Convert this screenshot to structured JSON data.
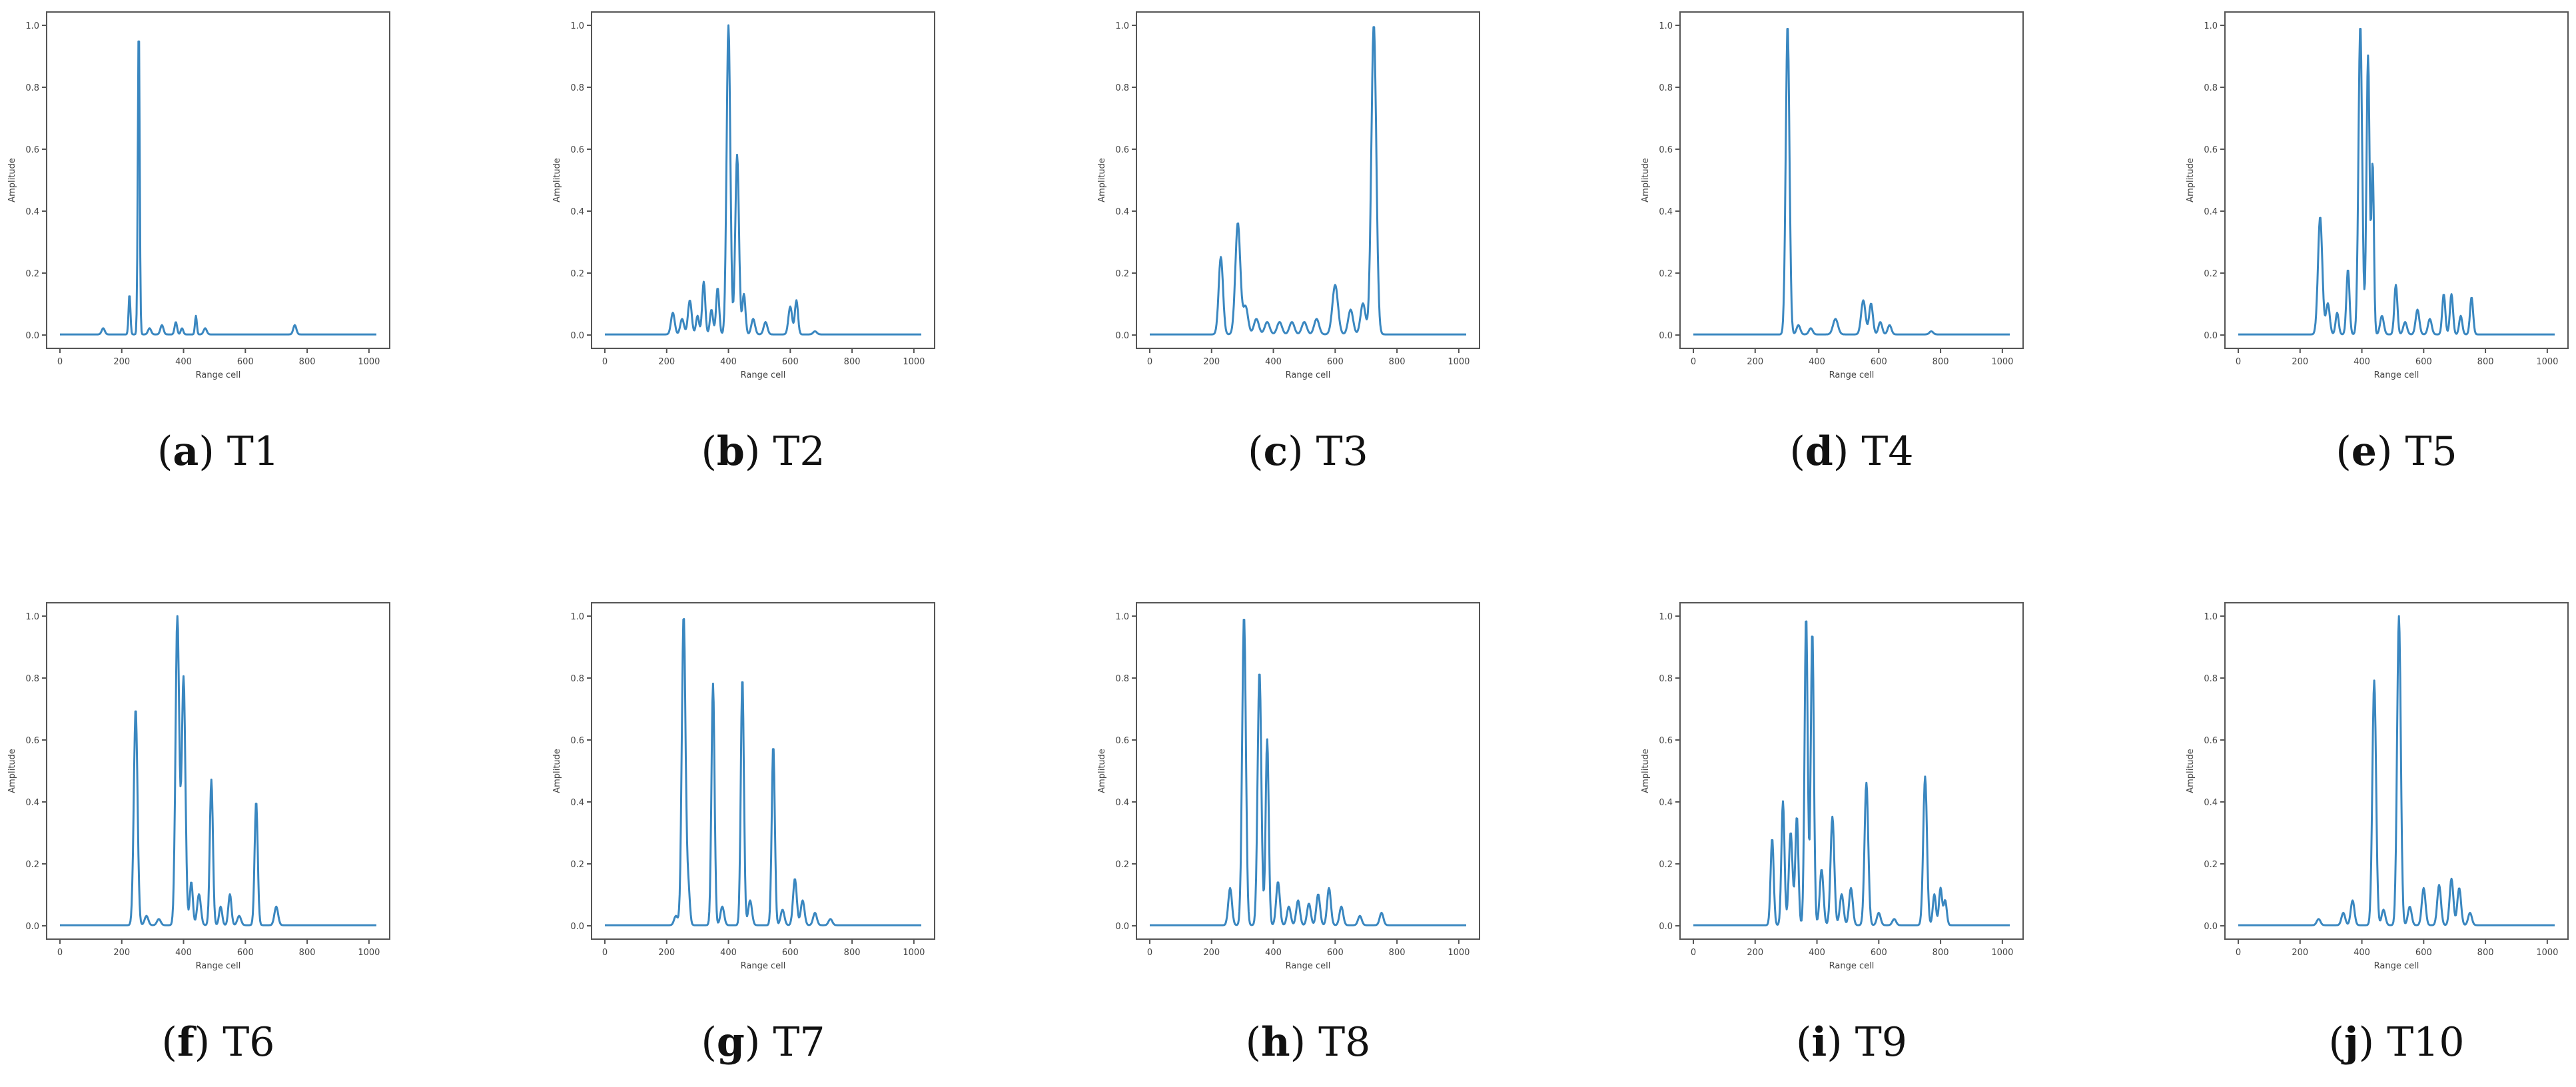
{
  "chart_data": [
    {
      "type": "line",
      "caption_letter": "a",
      "caption_label": "T1",
      "xlabel": "Range cell",
      "ylabel": "Amplitude",
      "xlim": [
        0,
        1024
      ],
      "ylim": [
        0,
        1.0
      ],
      "xticks": [
        0,
        200,
        400,
        600,
        800,
        1000
      ],
      "yticks": [
        0.0,
        0.2,
        0.4,
        0.6,
        0.8,
        1.0
      ],
      "peaks": [
        [
          140,
          0.02,
          5
        ],
        [
          225,
          0.13,
          3
        ],
        [
          255,
          1.0,
          3
        ],
        [
          290,
          0.02,
          5
        ],
        [
          330,
          0.03,
          5
        ],
        [
          375,
          0.04,
          4
        ],
        [
          395,
          0.02,
          4
        ],
        [
          440,
          0.06,
          3
        ],
        [
          470,
          0.02,
          5
        ],
        [
          760,
          0.03,
          5
        ]
      ]
    },
    {
      "type": "line",
      "caption_letter": "b",
      "caption_label": "T2",
      "xlabel": "Range cell",
      "ylabel": "Amplitude",
      "xlim": [
        0,
        1024
      ],
      "ylim": [
        0,
        1.0
      ],
      "xticks": [
        0,
        200,
        400,
        600,
        800,
        1000
      ],
      "yticks": [
        0.0,
        0.2,
        0.4,
        0.6,
        0.8,
        1.0
      ],
      "peaks": [
        [
          220,
          0.07,
          6
        ],
        [
          250,
          0.05,
          6
        ],
        [
          275,
          0.11,
          6
        ],
        [
          300,
          0.06,
          5
        ],
        [
          320,
          0.17,
          5
        ],
        [
          345,
          0.08,
          5
        ],
        [
          365,
          0.15,
          5
        ],
        [
          400,
          1.0,
          6
        ],
        [
          428,
          0.58,
          6
        ],
        [
          450,
          0.13,
          5
        ],
        [
          480,
          0.05,
          6
        ],
        [
          520,
          0.04,
          6
        ],
        [
          600,
          0.09,
          6
        ],
        [
          620,
          0.11,
          5
        ],
        [
          680,
          0.01,
          6
        ]
      ]
    },
    {
      "type": "line",
      "caption_letter": "c",
      "caption_label": "T3",
      "xlabel": "Range cell",
      "ylabel": "Amplitude",
      "xlim": [
        0,
        1024
      ],
      "ylim": [
        0,
        1.0
      ],
      "xticks": [
        0,
        200,
        400,
        600,
        800,
        1000
      ],
      "yticks": [
        0.0,
        0.2,
        0.4,
        0.6,
        0.8,
        1.0
      ],
      "peaks": [
        [
          230,
          0.25,
          7
        ],
        [
          285,
          0.36,
          8
        ],
        [
          310,
          0.09,
          8
        ],
        [
          345,
          0.05,
          8
        ],
        [
          380,
          0.04,
          8
        ],
        [
          420,
          0.04,
          8
        ],
        [
          460,
          0.04,
          8
        ],
        [
          500,
          0.04,
          8
        ],
        [
          540,
          0.05,
          8
        ],
        [
          600,
          0.16,
          9
        ],
        [
          650,
          0.08,
          8
        ],
        [
          690,
          0.1,
          8
        ],
        [
          725,
          1.0,
          8
        ]
      ]
    },
    {
      "type": "line",
      "caption_letter": "d",
      "caption_label": "T4",
      "xlabel": "Range cell",
      "ylabel": "Amplitude",
      "xlim": [
        0,
        1024
      ],
      "ylim": [
        0,
        1.0
      ],
      "xticks": [
        0,
        200,
        400,
        600,
        800,
        1000
      ],
      "yticks": [
        0.0,
        0.2,
        0.4,
        0.6,
        0.8,
        1.0
      ],
      "peaks": [
        [
          305,
          1.0,
          6
        ],
        [
          340,
          0.03,
          6
        ],
        [
          380,
          0.02,
          6
        ],
        [
          460,
          0.05,
          8
        ],
        [
          550,
          0.11,
          7
        ],
        [
          575,
          0.1,
          6
        ],
        [
          605,
          0.04,
          6
        ],
        [
          635,
          0.03,
          6
        ],
        [
          770,
          0.01,
          6
        ]
      ]
    },
    {
      "type": "line",
      "caption_letter": "e",
      "caption_label": "T5",
      "xlabel": "Range cell",
      "ylabel": "Amplitude",
      "xlim": [
        0,
        1024
      ],
      "ylim": [
        0,
        1.0
      ],
      "xticks": [
        0,
        200,
        400,
        600,
        800,
        1000
      ],
      "yticks": [
        0.0,
        0.2,
        0.4,
        0.6,
        0.8,
        1.0
      ],
      "peaks": [
        [
          265,
          0.38,
          7
        ],
        [
          290,
          0.1,
          6
        ],
        [
          320,
          0.07,
          5
        ],
        [
          355,
          0.21,
          5
        ],
        [
          395,
          1.0,
          6
        ],
        [
          420,
          0.9,
          5
        ],
        [
          435,
          0.55,
          4
        ],
        [
          465,
          0.06,
          6
        ],
        [
          510,
          0.16,
          5
        ],
        [
          540,
          0.04,
          6
        ],
        [
          580,
          0.08,
          6
        ],
        [
          620,
          0.05,
          6
        ],
        [
          665,
          0.13,
          5
        ],
        [
          690,
          0.13,
          5
        ],
        [
          720,
          0.06,
          5
        ],
        [
          755,
          0.12,
          5
        ]
      ]
    },
    {
      "type": "line",
      "caption_letter": "f",
      "caption_label": "T6",
      "xlabel": "Range cell",
      "ylabel": "Amplitude",
      "xlim": [
        0,
        1024
      ],
      "ylim": [
        0,
        1.0
      ],
      "xticks": [
        0,
        200,
        400,
        600,
        800,
        1000
      ],
      "yticks": [
        0.0,
        0.2,
        0.4,
        0.6,
        0.8,
        1.0
      ],
      "peaks": [
        [
          245,
          0.7,
          6
        ],
        [
          280,
          0.03,
          6
        ],
        [
          320,
          0.02,
          6
        ],
        [
          380,
          1.0,
          6
        ],
        [
          400,
          0.8,
          6
        ],
        [
          425,
          0.14,
          5
        ],
        [
          450,
          0.1,
          6
        ],
        [
          490,
          0.47,
          5
        ],
        [
          520,
          0.06,
          5
        ],
        [
          550,
          0.1,
          5
        ],
        [
          580,
          0.03,
          6
        ],
        [
          635,
          0.4,
          5
        ],
        [
          700,
          0.06,
          6
        ]
      ]
    },
    {
      "type": "line",
      "caption_letter": "g",
      "caption_label": "T7",
      "xlabel": "Range cell",
      "ylabel": "Amplitude",
      "xlim": [
        0,
        1024
      ],
      "ylim": [
        0,
        1.0
      ],
      "xticks": [
        0,
        200,
        400,
        600,
        800,
        1000
      ],
      "yticks": [
        0.0,
        0.2,
        0.4,
        0.6,
        0.8,
        1.0
      ],
      "peaks": [
        [
          230,
          0.03,
          6
        ],
        [
          255,
          1.0,
          6
        ],
        [
          270,
          0.12,
          5
        ],
        [
          350,
          0.78,
          5
        ],
        [
          380,
          0.06,
          6
        ],
        [
          445,
          0.8,
          5
        ],
        [
          470,
          0.08,
          6
        ],
        [
          545,
          0.58,
          5
        ],
        [
          575,
          0.05,
          6
        ],
        [
          615,
          0.15,
          6
        ],
        [
          640,
          0.08,
          6
        ],
        [
          680,
          0.04,
          6
        ],
        [
          730,
          0.02,
          6
        ]
      ]
    },
    {
      "type": "line",
      "caption_letter": "h",
      "caption_label": "T8",
      "xlabel": "Range cell",
      "ylabel": "Amplitude",
      "xlim": [
        0,
        1024
      ],
      "ylim": [
        0,
        1.0
      ],
      "xticks": [
        0,
        200,
        400,
        600,
        800,
        1000
      ],
      "yticks": [
        0.0,
        0.2,
        0.4,
        0.6,
        0.8,
        1.0
      ],
      "peaks": [
        [
          260,
          0.12,
          6
        ],
        [
          305,
          1.0,
          6
        ],
        [
          355,
          0.82,
          6
        ],
        [
          380,
          0.6,
          5
        ],
        [
          415,
          0.14,
          6
        ],
        [
          450,
          0.06,
          6
        ],
        [
          480,
          0.08,
          6
        ],
        [
          515,
          0.07,
          6
        ],
        [
          545,
          0.1,
          6
        ],
        [
          580,
          0.12,
          6
        ],
        [
          620,
          0.06,
          6
        ],
        [
          680,
          0.03,
          6
        ],
        [
          750,
          0.04,
          6
        ]
      ]
    },
    {
      "type": "line",
      "caption_letter": "i",
      "caption_label": "T9",
      "xlabel": "Range cell",
      "ylabel": "Amplitude",
      "xlim": [
        0,
        1024
      ],
      "ylim": [
        0,
        1.0
      ],
      "xticks": [
        0,
        200,
        400,
        600,
        800,
        1000
      ],
      "yticks": [
        0.0,
        0.2,
        0.4,
        0.6,
        0.8,
        1.0
      ],
      "peaks": [
        [
          255,
          0.28,
          5
        ],
        [
          290,
          0.4,
          5
        ],
        [
          315,
          0.3,
          6
        ],
        [
          335,
          0.35,
          5
        ],
        [
          365,
          1.0,
          5
        ],
        [
          385,
          0.95,
          5
        ],
        [
          415,
          0.18,
          6
        ],
        [
          450,
          0.35,
          6
        ],
        [
          480,
          0.1,
          6
        ],
        [
          510,
          0.12,
          6
        ],
        [
          560,
          0.46,
          6
        ],
        [
          600,
          0.04,
          6
        ],
        [
          650,
          0.02,
          6
        ],
        [
          750,
          0.48,
          6
        ],
        [
          780,
          0.1,
          5
        ],
        [
          800,
          0.12,
          5
        ],
        [
          815,
          0.08,
          5
        ]
      ]
    },
    {
      "type": "line",
      "caption_letter": "j",
      "caption_label": "T10",
      "xlabel": "Range cell",
      "ylabel": "Amplitude",
      "xlim": [
        0,
        1024
      ],
      "ylim": [
        0,
        1.0
      ],
      "xticks": [
        0,
        200,
        400,
        600,
        800,
        1000
      ],
      "yticks": [
        0.0,
        0.2,
        0.4,
        0.6,
        0.8,
        1.0
      ],
      "peaks": [
        [
          260,
          0.02,
          6
        ],
        [
          340,
          0.04,
          6
        ],
        [
          370,
          0.08,
          6
        ],
        [
          440,
          0.79,
          6
        ],
        [
          470,
          0.05,
          6
        ],
        [
          520,
          1.0,
          6
        ],
        [
          555,
          0.06,
          6
        ],
        [
          600,
          0.12,
          6
        ],
        [
          650,
          0.13,
          6
        ],
        [
          690,
          0.15,
          6
        ],
        [
          715,
          0.12,
          6
        ],
        [
          750,
          0.04,
          6
        ]
      ]
    }
  ]
}
